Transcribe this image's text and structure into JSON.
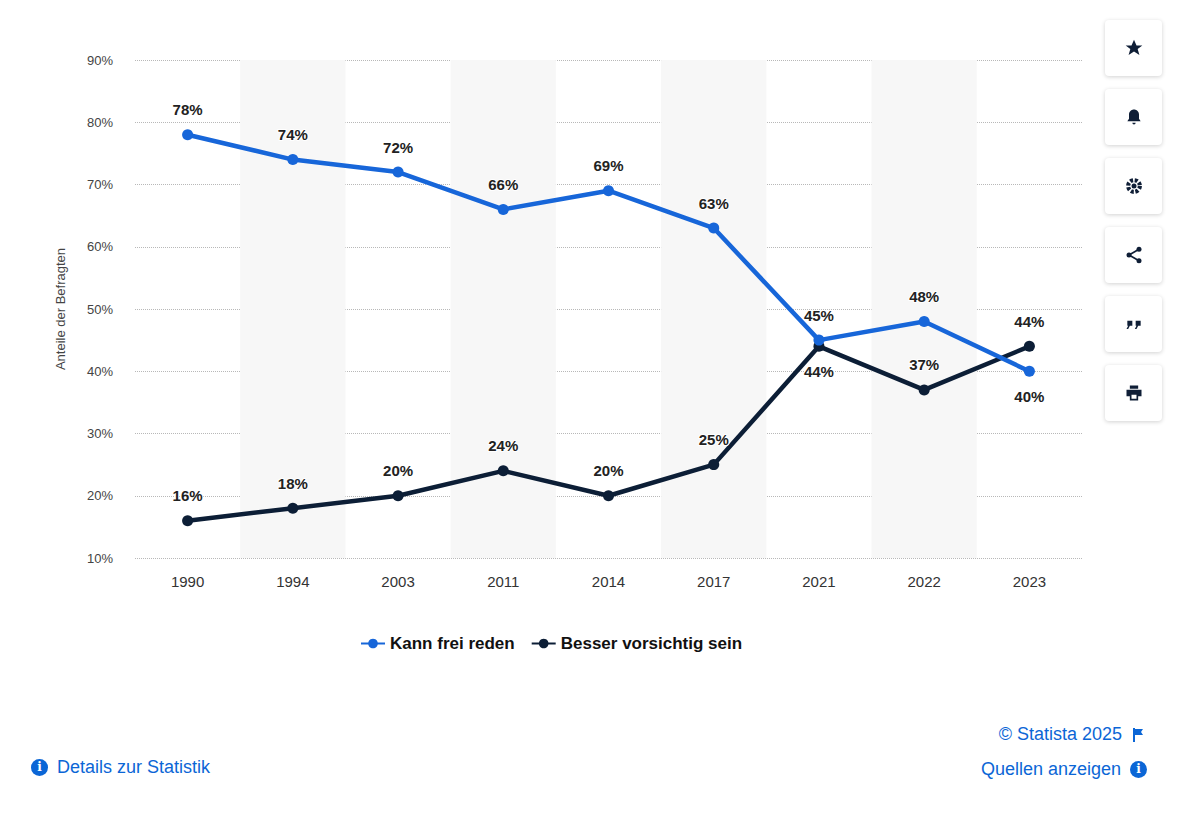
{
  "chart_data": {
    "type": "line",
    "y_label": "Anteile der Befragten",
    "categories": [
      "1990",
      "1994",
      "2003",
      "2011",
      "2014",
      "2017",
      "2021",
      "2022",
      "2023"
    ],
    "ylim": [
      10,
      90
    ],
    "yticks": [
      {
        "value": 10,
        "label": "10%"
      },
      {
        "value": 20,
        "label": "20%"
      },
      {
        "value": 30,
        "label": "30%"
      },
      {
        "value": 40,
        "label": "40%"
      },
      {
        "value": 50,
        "label": "50%"
      },
      {
        "value": 60,
        "label": "60%"
      },
      {
        "value": 70,
        "label": "70%"
      },
      {
        "value": 80,
        "label": "80%"
      },
      {
        "value": 90,
        "label": "90%"
      }
    ],
    "grid": true,
    "legend": "bottom",
    "data_labels": true,
    "marker": "circle",
    "line_style": "solid",
    "series": [
      {
        "name": "Kann frei reden",
        "color": "#1766d9",
        "values": [
          78,
          74,
          72,
          66,
          69,
          63,
          45,
          48,
          40
        ],
        "value_labels": [
          "78%",
          "74%",
          "72%",
          "66%",
          "69%",
          "63%",
          "45%",
          "48%",
          "40%"
        ]
      },
      {
        "name": "Besser vorsichtig sein",
        "color": "#0c1e36",
        "values": [
          16,
          18,
          20,
          24,
          20,
          25,
          44,
          37,
          44
        ],
        "value_labels": [
          "16%",
          "18%",
          "20%",
          "24%",
          "20%",
          "25%",
          "44%",
          "37%",
          "44%"
        ]
      }
    ],
    "annotations": [
      "© Statista 2025",
      "Details zur Statistik",
      "Quellen anzeigen"
    ]
  }
}
